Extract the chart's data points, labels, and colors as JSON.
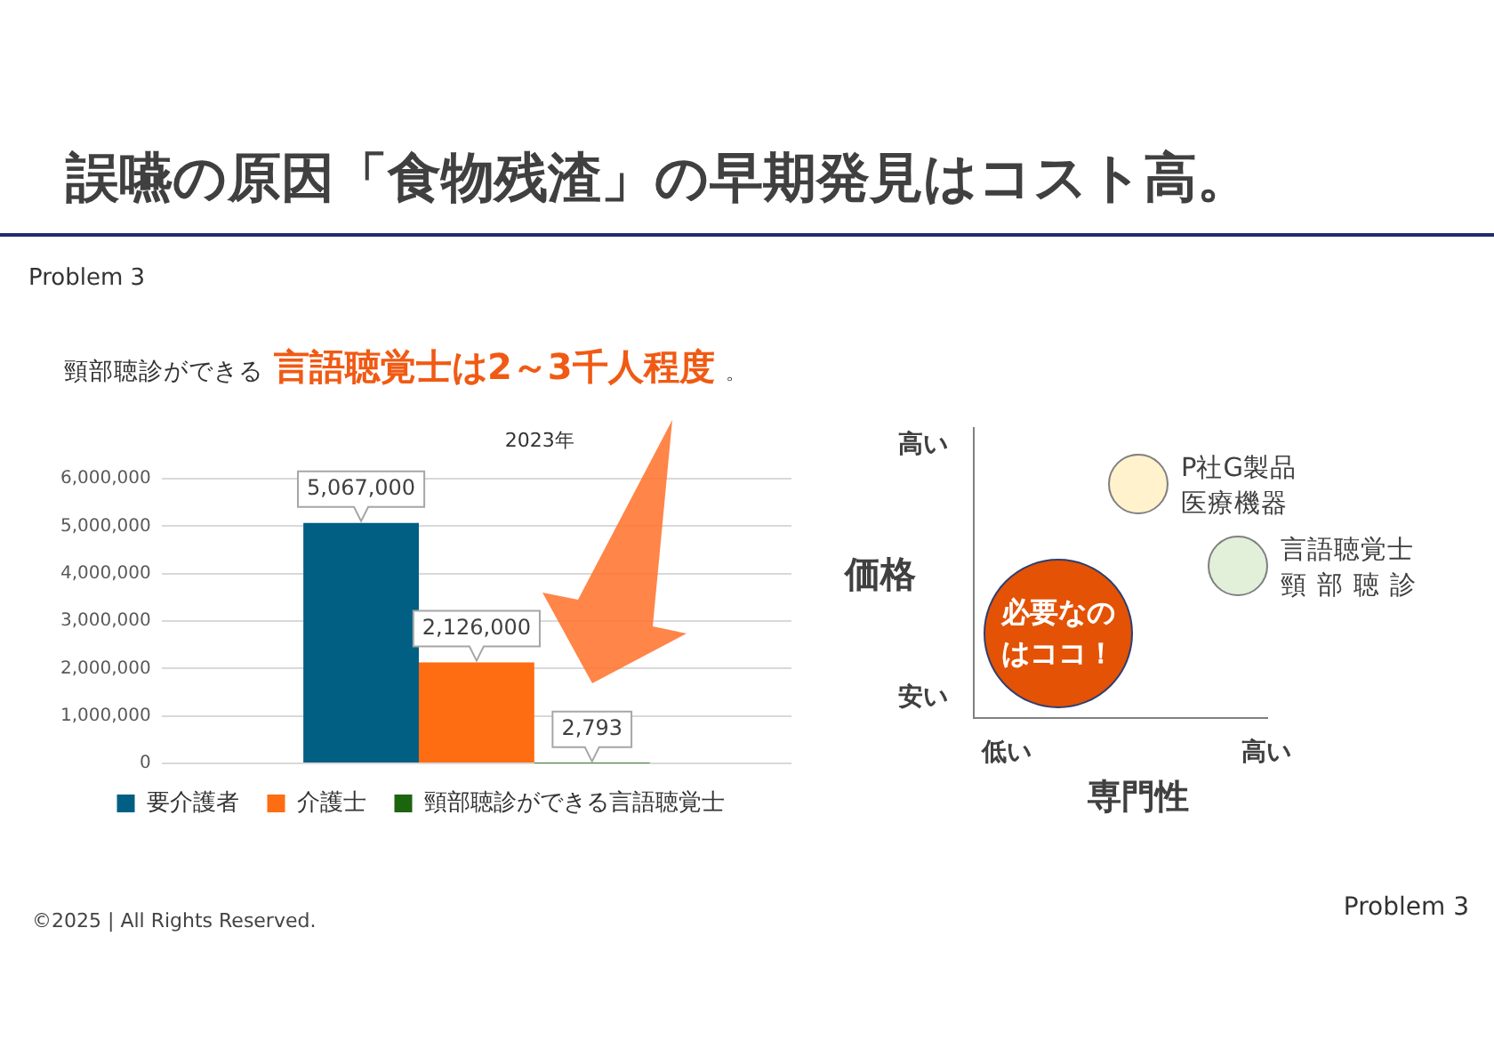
{
  "chart_data": [
    {
      "type": "bar",
      "title": "2023年",
      "categories": [
        null
      ],
      "series": [
        {
          "name": "要介護者",
          "color": "#005f83",
          "values": [
            5067000
          ],
          "value_labels": [
            "5,067,000"
          ]
        },
        {
          "name": "介護士",
          "color": "#ff6d12",
          "values": [
            2126000
          ],
          "value_labels": [
            "2,126,000"
          ]
        },
        {
          "name": "頸部聴診ができる言語聴覚士",
          "color": "#1d6410",
          "values": [
            2793
          ],
          "value_labels": [
            "2,793"
          ]
        }
      ],
      "ylim": [
        0,
        6000000
      ],
      "yticks": [
        0,
        {
          "value": 1000000,
          "label": "1,000,000"
        },
        {
          "value": 2000000,
          "label": "2,000,000"
        },
        {
          "value": 3000000,
          "label": "3,000,000"
        },
        {
          "value": 4000000,
          "label": "4,000,000"
        },
        {
          "value": 5000000,
          "label": "5,000,000"
        },
        {
          "value": 6000000,
          "label": "6,000,000"
        }
      ],
      "grid": "y",
      "legend": "bottom",
      "tick_labels": "y",
      "annotations": [
        "誤嚥の原因「食物残渣」の早期発見はコスト高。",
        "Problem 3",
        "頸部聴診ができる",
        "言語聴覚士は2～3千人程度",
        "。",
        "©2025 | All Rights Reserved.",
        "Problem 3"
      ]
    },
    {
      "type": "other",
      "xlabel": "専門性",
      "ylabel": "価格",
      "annotations": [
        "高い",
        "安い",
        "低い",
        "高い",
        "P社G製品",
        "医療機器",
        "言語聴覚士",
        "頸部聴診",
        "必要なの",
        "はココ！"
      ]
    }
  ]
}
